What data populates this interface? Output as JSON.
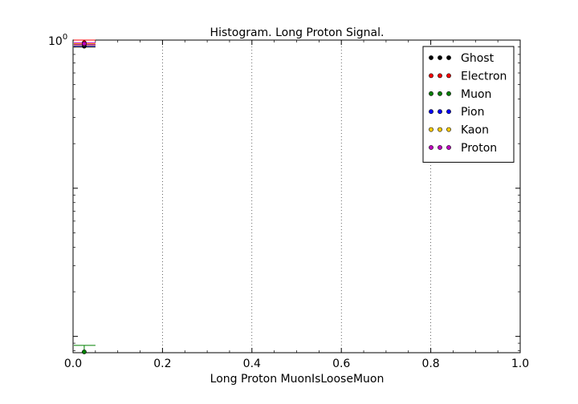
{
  "chart_data": {
    "type": "scatter",
    "title": "Histogram. Long Proton Signal.",
    "xlabel": "Long Proton MuonIsLooseMuon",
    "ylabel": "",
    "xlim": [
      0.0,
      1.0
    ],
    "ylim_log10": [
      -2.11,
      0.0
    ],
    "y_scale": "log",
    "x_ticks": [
      "0.0",
      "0.2",
      "0.4",
      "0.6",
      "0.8",
      "1.0"
    ],
    "x_tick_values": [
      0.0,
      0.2,
      0.4,
      0.6,
      0.8,
      1.0
    ],
    "y_tick_label": {
      "base": "10",
      "exp": "0"
    },
    "grid": "x-dotted",
    "legend_position": "top-right",
    "series": [
      {
        "name": "Ghost",
        "color": "#000000",
        "x": [
          0.025
        ],
        "y": [
          0.91
        ],
        "err": [
          0.012
        ]
      },
      {
        "name": "Electron",
        "color": "#ff0000",
        "x": [
          0.025
        ],
        "y": [
          0.96
        ],
        "err": [
          0.04
        ]
      },
      {
        "name": "Muon",
        "color": "#008000",
        "x": [
          0.025
        ],
        "y": [
          0.0078
        ],
        "err": [
          0.0009
        ]
      },
      {
        "name": "Pion",
        "color": "#0000ff",
        "x": [
          0.025
        ],
        "y": [
          0.925
        ],
        "err": [
          0.01
        ]
      },
      {
        "name": "Kaon",
        "color": "#ffcc00",
        "x": [
          0.025
        ],
        "y": [
          0.935
        ],
        "err": [
          0.01
        ]
      },
      {
        "name": "Proton",
        "color": "#bf00bf",
        "x": [
          0.025
        ],
        "y": [
          0.945
        ],
        "err": [
          0.012
        ]
      }
    ]
  }
}
